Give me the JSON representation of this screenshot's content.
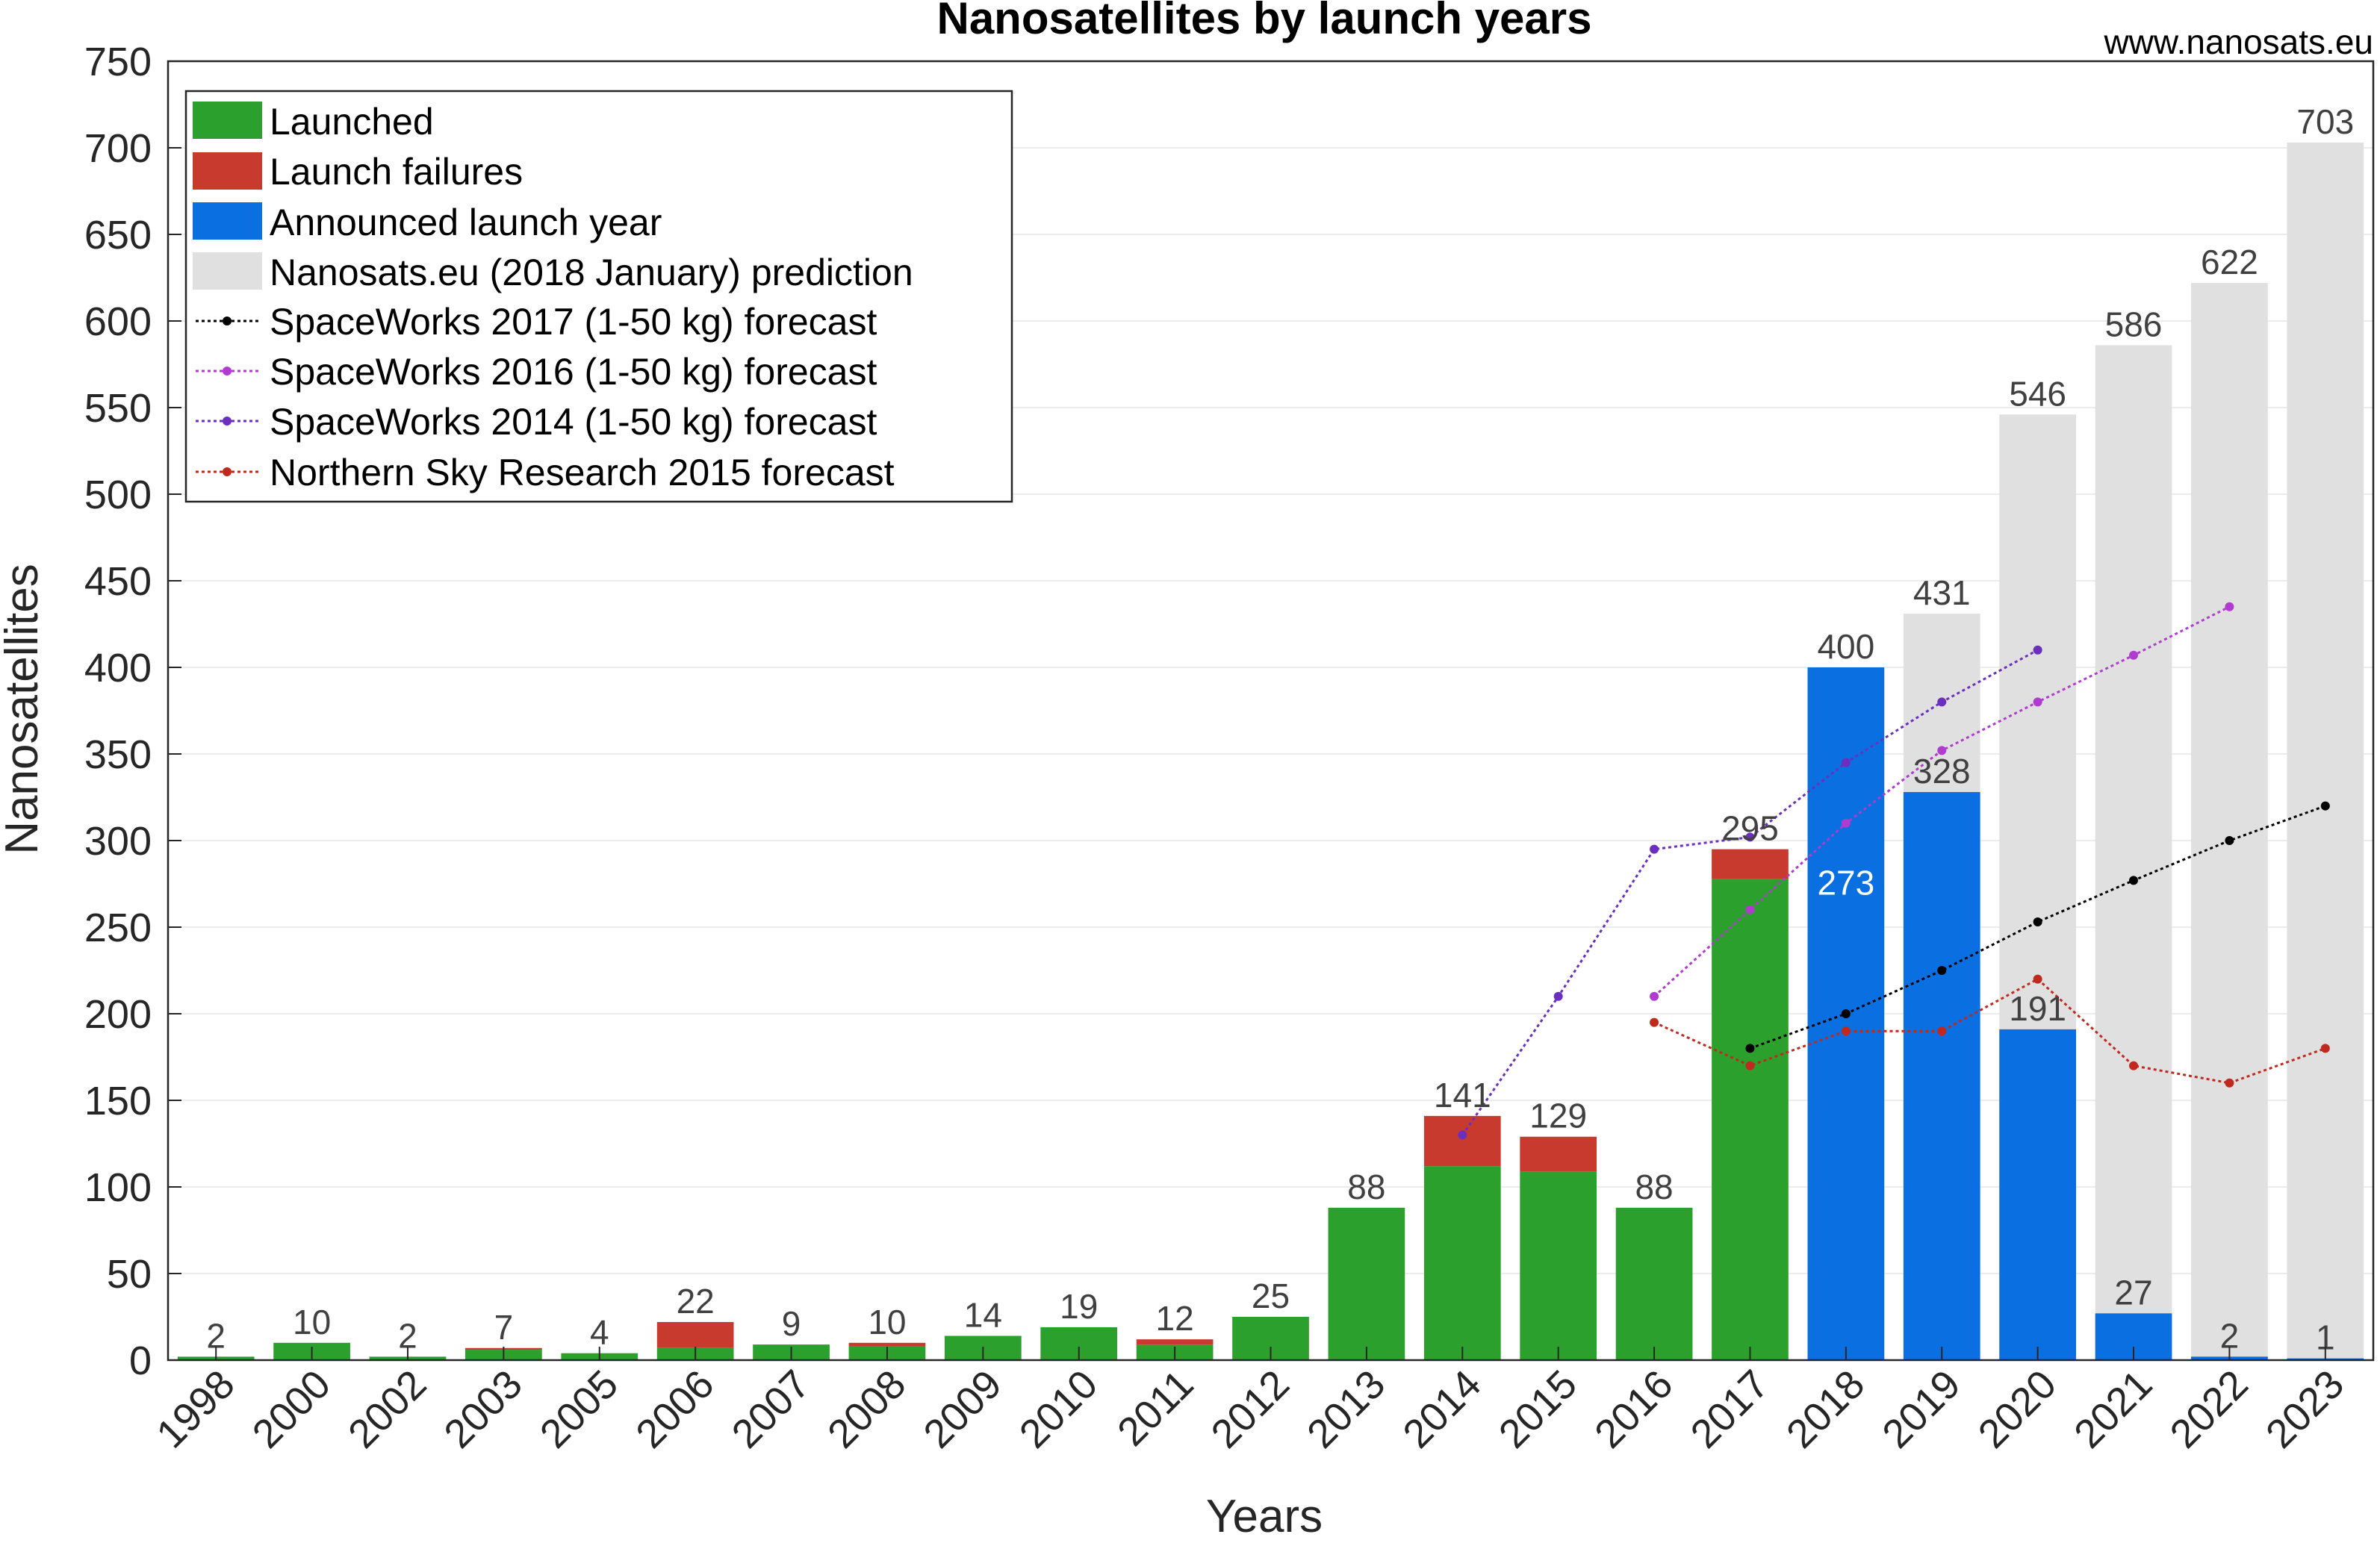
{
  "chart_data": {
    "type": "bar",
    "title": "Nanosatellites by launch years",
    "watermark": "www.nanosats.eu",
    "xlabel": "Years",
    "ylabel": "Nanosatellites",
    "ylim": [
      0,
      750
    ],
    "yticks": [
      0,
      50,
      100,
      150,
      200,
      250,
      300,
      350,
      400,
      450,
      500,
      550,
      600,
      650,
      700,
      750
    ],
    "grid": true,
    "legend_position": "top-left",
    "categories": [
      "1998",
      "2000",
      "2002",
      "2003",
      "2005",
      "2006",
      "2007",
      "2008",
      "2009",
      "2010",
      "2011",
      "2012",
      "2013",
      "2014",
      "2015",
      "2016",
      "2017",
      "2018",
      "2019",
      "2020",
      "2021",
      "2022",
      "2023"
    ],
    "colors": {
      "launched": "#2ca02c",
      "failures": "#c83a2e",
      "announced": "#0a6fe0",
      "prediction": "#e0e0e0",
      "sw2017": "#000000",
      "sw2016": "#b03ccf",
      "sw2014": "#6b2fbf",
      "nsr2015": "#c02a1e"
    },
    "series": [
      {
        "name": "Launched",
        "key": "launched",
        "values": [
          2,
          10,
          2,
          6,
          4,
          7,
          9,
          8,
          14,
          19,
          9,
          25,
          88,
          112,
          109,
          88,
          278,
          null,
          null,
          null,
          null,
          null,
          null
        ]
      },
      {
        "name": "Launch failures",
        "key": "failures",
        "values": [
          0,
          0,
          0,
          1,
          0,
          15,
          0,
          2,
          0,
          0,
          3,
          0,
          0,
          29,
          20,
          0,
          17,
          null,
          null,
          null,
          null,
          null,
          null
        ]
      },
      {
        "name": "Announced launch year",
        "key": "announced",
        "values": [
          null,
          null,
          null,
          null,
          null,
          null,
          null,
          null,
          null,
          null,
          null,
          null,
          null,
          null,
          null,
          null,
          null,
          400,
          328,
          191,
          27,
          2,
          1
        ]
      },
      {
        "name": "Nanosats.eu (2018 January) prediction",
        "key": "prediction",
        "values": [
          null,
          null,
          null,
          null,
          null,
          null,
          null,
          null,
          null,
          null,
          null,
          null,
          null,
          null,
          null,
          null,
          null,
          273,
          431,
          546,
          586,
          622,
          703
        ]
      }
    ],
    "bar_labels": [
      "2",
      "10",
      "2",
      "7",
      "4",
      "22",
      "9",
      "10",
      "14",
      "19",
      "12",
      "25",
      "88",
      "141",
      "129",
      "88",
      "295",
      "400",
      "431",
      "546",
      "586",
      "622",
      "703"
    ],
    "inner_labels": {
      "2017": "",
      "2018": "273",
      "2019": "328",
      "2020": "191",
      "2021": "27",
      "2022": "2",
      "2023": "1"
    },
    "lines": [
      {
        "name": "SpaceWorks 2017 (1-50 kg) forecast",
        "key": "sw2017",
        "x": [
          "2017",
          "2018",
          "2019",
          "2020",
          "2021",
          "2022",
          "2023"
        ],
        "y": [
          180,
          200,
          225,
          253,
          277,
          300,
          320
        ]
      },
      {
        "name": "SpaceWorks 2016 (1-50 kg) forecast",
        "key": "sw2016",
        "x": [
          "2016",
          "2017",
          "2018",
          "2019",
          "2020",
          "2021",
          "2022"
        ],
        "y": [
          210,
          260,
          310,
          352,
          380,
          407,
          435
        ]
      },
      {
        "name": "SpaceWorks 2014 (1-50 kg) forecast",
        "key": "sw2014",
        "x": [
          "2014",
          "2015",
          "2016",
          "2017",
          "2018",
          "2019",
          "2020"
        ],
        "y": [
          130,
          210,
          295,
          302,
          345,
          380,
          410
        ]
      },
      {
        "name": "Northern Sky Research 2015 forecast",
        "key": "nsr2015",
        "x": [
          "2016",
          "2017",
          "2018",
          "2019",
          "2020",
          "2021",
          "2022",
          "2023"
        ],
        "y": [
          195,
          170,
          190,
          190,
          220,
          170,
          160,
          180
        ]
      }
    ]
  }
}
